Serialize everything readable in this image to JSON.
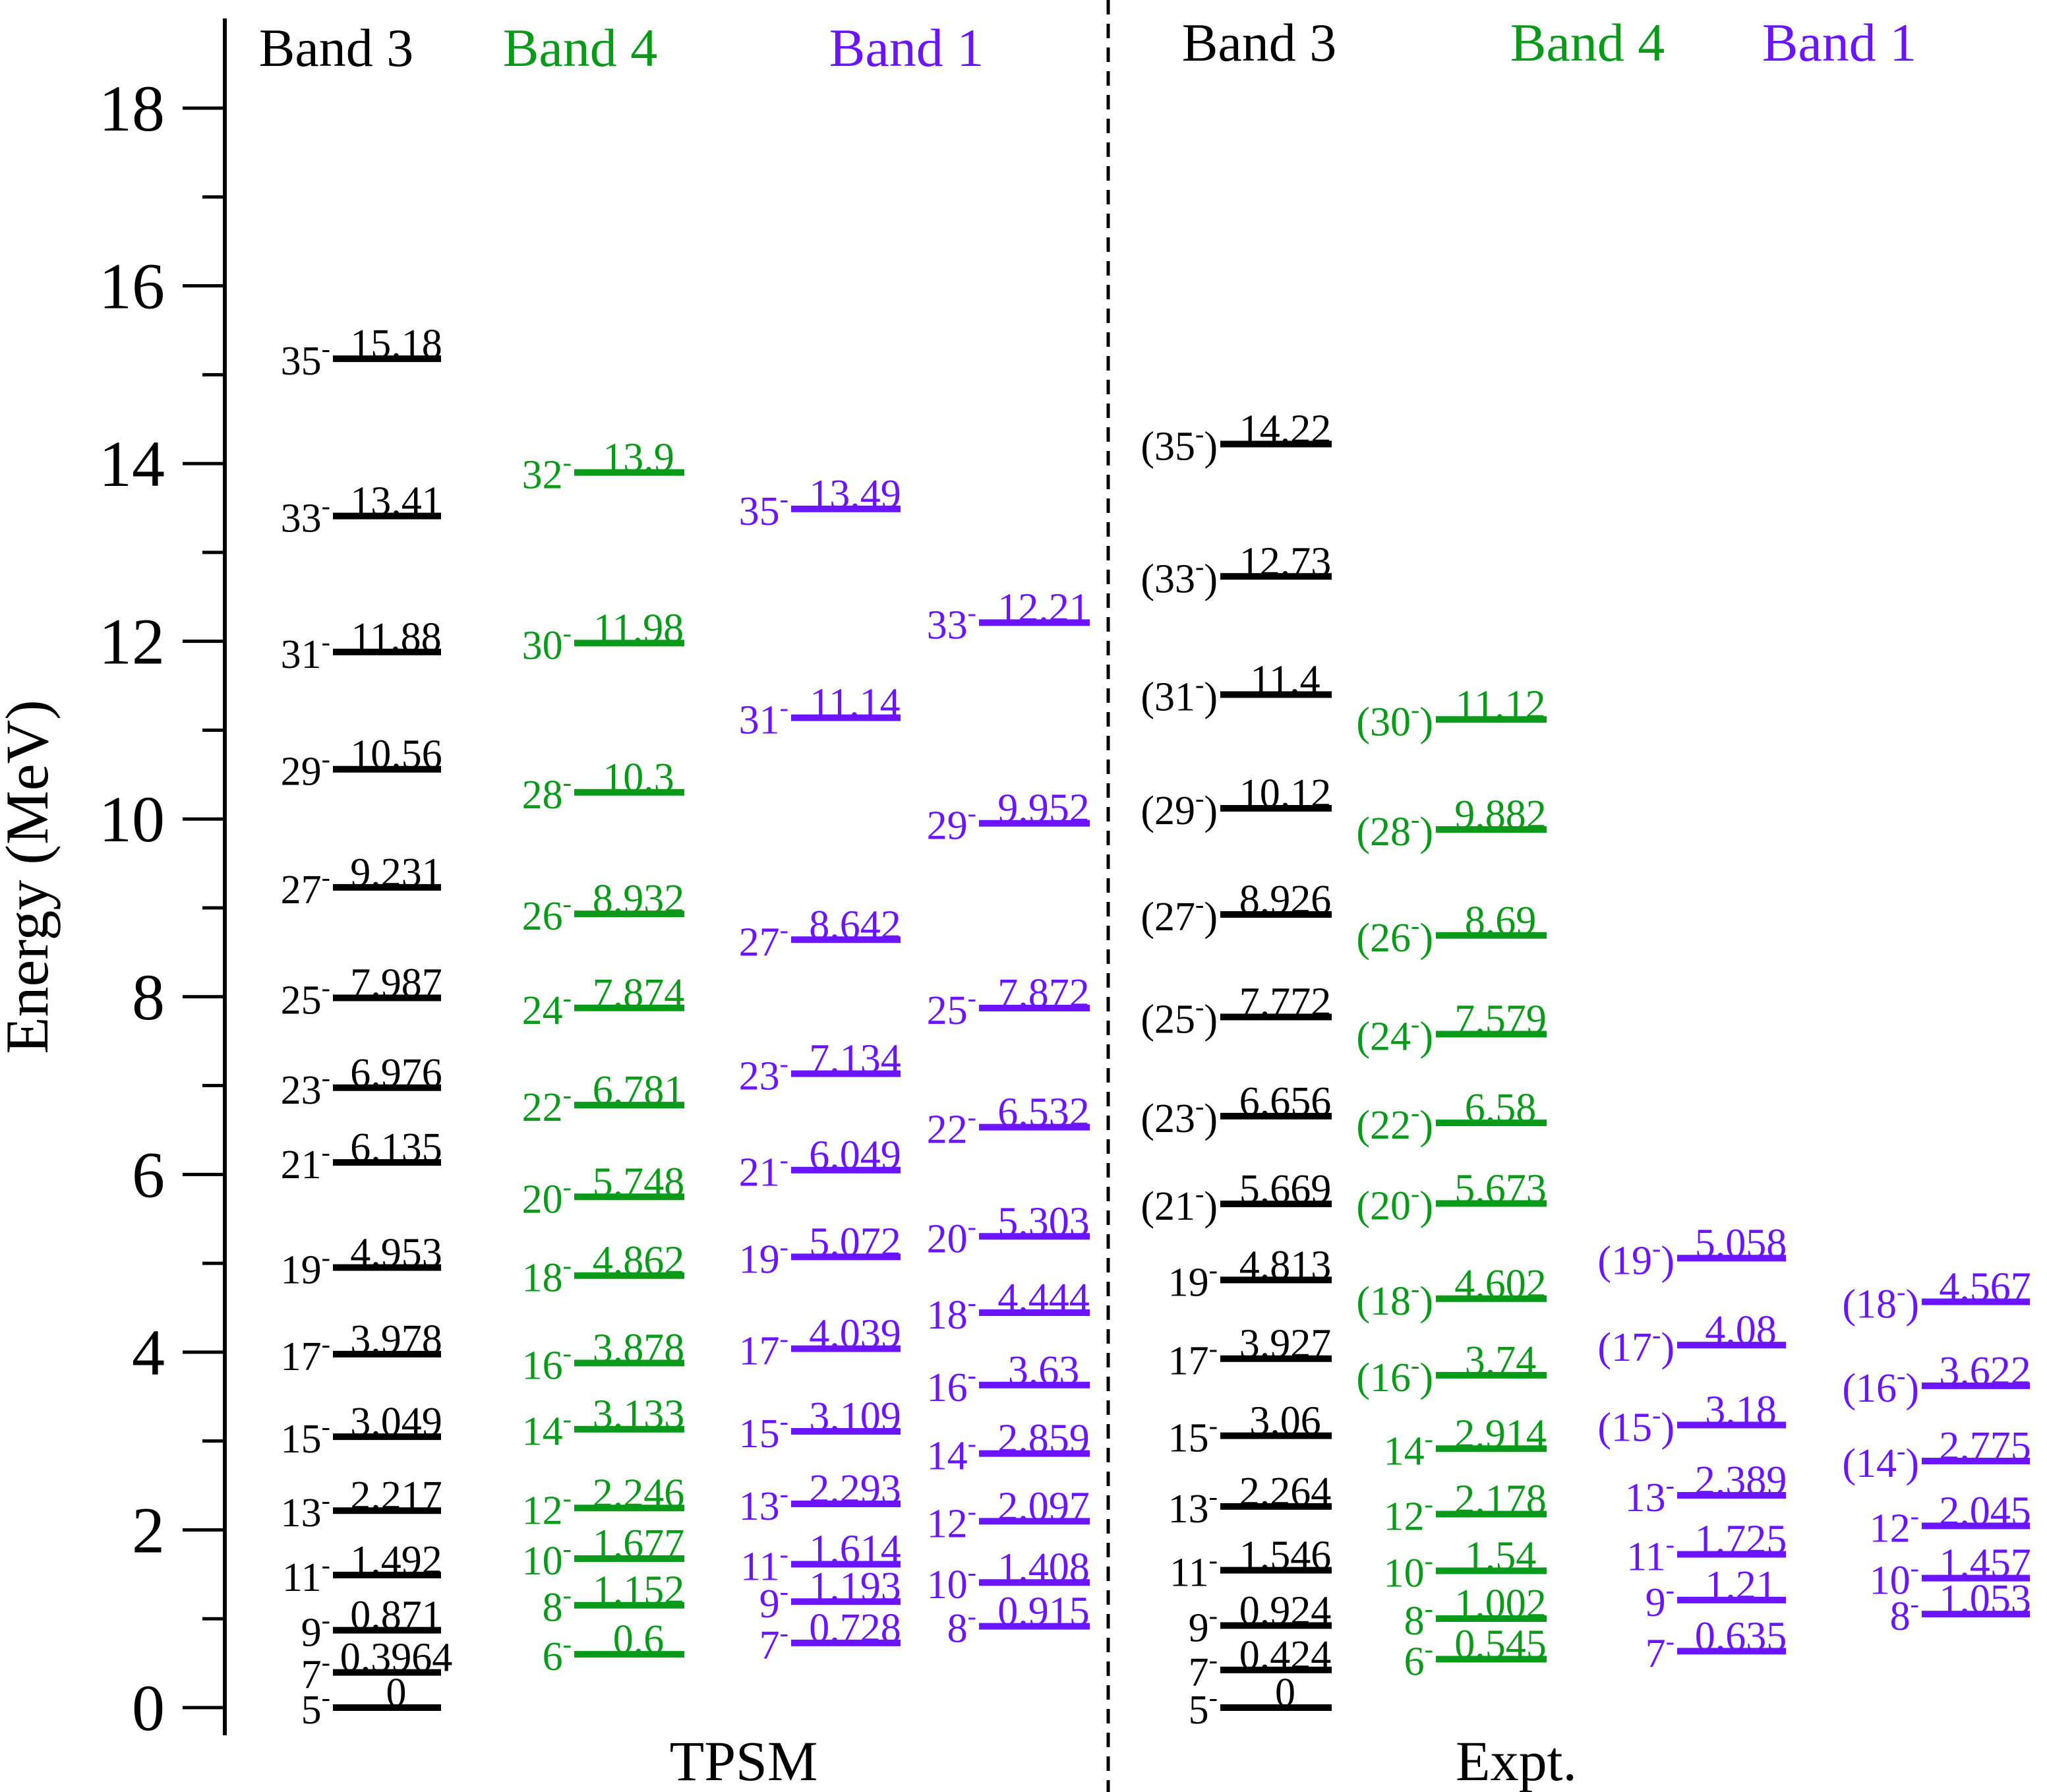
{
  "chart_data": {
    "type": "level-scheme",
    "ylabel": "Energy (MeV)",
    "ylim": [
      0,
      18
    ],
    "yticks": [
      0,
      2,
      4,
      6,
      8,
      10,
      12,
      14,
      16,
      18
    ],
    "grid": false,
    "colors": {
      "Band 3": "#000000",
      "Band 4": "#0a9a1a",
      "Band 1": "#6a14ff"
    },
    "groups": [
      {
        "label": "TPSM",
        "columns": [
          {
            "title": "Band 3",
            "levels": [
              {
                "spin": "5",
                "energy": "0"
              },
              {
                "spin": "7",
                "energy": "0.3964"
              },
              {
                "spin": "9",
                "energy": "0.871"
              },
              {
                "spin": "11",
                "energy": "1.492"
              },
              {
                "spin": "13",
                "energy": "2.217"
              },
              {
                "spin": "15",
                "energy": "3.049"
              },
              {
                "spin": "17",
                "energy": "3.978"
              },
              {
                "spin": "19",
                "energy": "4.953"
              },
              {
                "spin": "21",
                "energy": "6.135"
              },
              {
                "spin": "23",
                "energy": "6.976"
              },
              {
                "spin": "25",
                "energy": "7.987"
              },
              {
                "spin": "27",
                "energy": "9.231"
              },
              {
                "spin": "29",
                "energy": "10.56"
              },
              {
                "spin": "31",
                "energy": "11.88"
              },
              {
                "spin": "33",
                "energy": "13.41"
              },
              {
                "spin": "35",
                "energy": "15.18"
              }
            ]
          },
          {
            "title": "Band 4",
            "levels": [
              {
                "spin": "6",
                "energy": "0.6"
              },
              {
                "spin": "8",
                "energy": "1.152"
              },
              {
                "spin": "10",
                "energy": "1.677"
              },
              {
                "spin": "12",
                "energy": "2.246"
              },
              {
                "spin": "14",
                "energy": "3.133"
              },
              {
                "spin": "16",
                "energy": "3.878"
              },
              {
                "spin": "18",
                "energy": "4.862"
              },
              {
                "spin": "20",
                "energy": "5.748"
              },
              {
                "spin": "22",
                "energy": "6.781"
              },
              {
                "spin": "24",
                "energy": "7.874"
              },
              {
                "spin": "26",
                "energy": "8.932"
              },
              {
                "spin": "28",
                "energy": "10.3"
              },
              {
                "spin": "30",
                "energy": "11.98"
              },
              {
                "spin": "32",
                "energy": "13.9"
              }
            ]
          },
          {
            "title": "Band 1",
            "levels": [
              {
                "spin": "7",
                "energy": "0.728"
              },
              {
                "spin": "9",
                "energy": "1.193"
              },
              {
                "spin": "11",
                "energy": "1.614"
              },
              {
                "spin": "13",
                "energy": "2.293"
              },
              {
                "spin": "15",
                "energy": "3.109"
              },
              {
                "spin": "17",
                "energy": "4.039"
              },
              {
                "spin": "19",
                "energy": "5.072"
              },
              {
                "spin": "21",
                "energy": "6.049"
              },
              {
                "spin": "23",
                "energy": "7.134"
              },
              {
                "spin": "27",
                "energy": "8.642"
              },
              {
                "spin": "31",
                "energy": "11.14"
              },
              {
                "spin": "35",
                "energy": "13.49"
              }
            ]
          },
          {
            "title": "",
            "band": "Band 1",
            "levels": [
              {
                "spin": "8",
                "energy": "0.915"
              },
              {
                "spin": "10",
                "energy": "1.408"
              },
              {
                "spin": "12",
                "energy": "2.097"
              },
              {
                "spin": "14",
                "energy": "2.859"
              },
              {
                "spin": "16",
                "energy": "3.63"
              },
              {
                "spin": "18",
                "energy": "4.444"
              },
              {
                "spin": "20",
                "energy": "5.303"
              },
              {
                "spin": "22",
                "energy": "6.532"
              },
              {
                "spin": "25",
                "energy": "7.872"
              },
              {
                "spin": "29",
                "energy": "9.952"
              },
              {
                "spin": "33",
                "energy": "12.21"
              }
            ]
          }
        ]
      },
      {
        "label": "Expt.",
        "columns": [
          {
            "title": "Band 3",
            "levels": [
              {
                "spin": "5",
                "energy": "0"
              },
              {
                "spin": "7",
                "energy": "0.424"
              },
              {
                "spin": "9",
                "energy": "0.924"
              },
              {
                "spin": "11",
                "energy": "1.546"
              },
              {
                "spin": "13",
                "energy": "2.264"
              },
              {
                "spin": "15",
                "energy": "3.06"
              },
              {
                "spin": "17",
                "energy": "3.927"
              },
              {
                "spin": "19",
                "energy": "4.813"
              },
              {
                "spin": "21",
                "energy": "5.669",
                "tentative": true
              },
              {
                "spin": "23",
                "energy": "6.656",
                "tentative": true
              },
              {
                "spin": "25",
                "energy": "7.772",
                "tentative": true
              },
              {
                "spin": "27",
                "energy": "8.926",
                "tentative": true
              },
              {
                "spin": "29",
                "energy": "10.12",
                "tentative": true
              },
              {
                "spin": "31",
                "energy": "11.4",
                "tentative": true
              },
              {
                "spin": "33",
                "energy": "12.73",
                "tentative": true
              },
              {
                "spin": "35",
                "energy": "14.22",
                "tentative": true
              }
            ]
          },
          {
            "title": "Band 4",
            "levels": [
              {
                "spin": "6",
                "energy": "0.545"
              },
              {
                "spin": "8",
                "energy": "1.002"
              },
              {
                "spin": "10",
                "energy": "1.54"
              },
              {
                "spin": "12",
                "energy": "2.178"
              },
              {
                "spin": "14",
                "energy": "2.914"
              },
              {
                "spin": "16",
                "energy": "3.74",
                "tentative": true
              },
              {
                "spin": "18",
                "energy": "4.602",
                "tentative": true
              },
              {
                "spin": "20",
                "energy": "5.673",
                "tentative": true
              },
              {
                "spin": "22",
                "energy": "6.58",
                "tentative": true
              },
              {
                "spin": "24",
                "energy": "7.579",
                "tentative": true
              },
              {
                "spin": "26",
                "energy": "8.69",
                "tentative": true
              },
              {
                "spin": "28",
                "energy": "9.882",
                "tentative": true
              },
              {
                "spin": "30",
                "energy": "11.12",
                "tentative": true
              }
            ]
          },
          {
            "title": "Band 1",
            "levels": [
              {
                "spin": "7",
                "energy": "0.635"
              },
              {
                "spin": "9",
                "energy": "1.21"
              },
              {
                "spin": "11",
                "energy": "1.725"
              },
              {
                "spin": "13",
                "energy": "2.389"
              },
              {
                "spin": "15",
                "energy": "3.18",
                "tentative": true
              },
              {
                "spin": "17",
                "energy": "4.08",
                "tentative": true
              },
              {
                "spin": "19",
                "energy": "5.058",
                "tentative": true
              }
            ]
          },
          {
            "title": "",
            "band": "Band 1",
            "levels": [
              {
                "spin": "8",
                "energy": "1.053"
              },
              {
                "spin": "10",
                "energy": "1.457"
              },
              {
                "spin": "12",
                "energy": "2.045"
              },
              {
                "spin": "14",
                "energy": "2.775",
                "tentative": true
              },
              {
                "spin": "16",
                "energy": "3.622",
                "tentative": true
              },
              {
                "spin": "18",
                "energy": "4.567",
                "tentative": true
              }
            ]
          }
        ]
      }
    ]
  }
}
